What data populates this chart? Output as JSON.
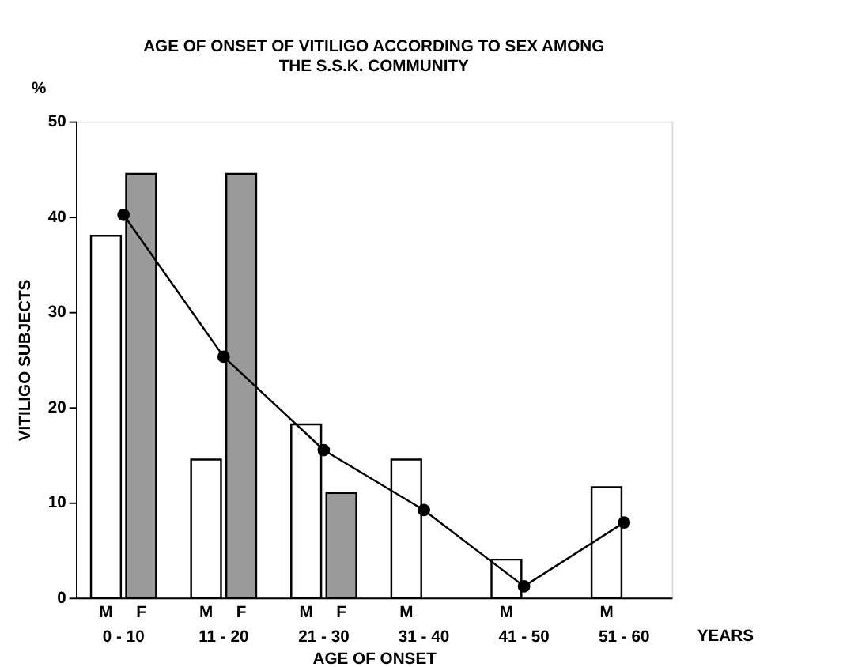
{
  "chart_data": {
    "type": "bar",
    "title": "AGE OF ONSET OF VITILIGO ACCORDING TO SEX AMONG\nTHE S.S.K. COMMUNITY",
    "xlabel": "AGE OF ONSET",
    "ylabel": "VITILIGO SUBJECTS",
    "categories": [
      "0 - 10",
      "11 - 20",
      "21 - 30",
      "31 - 40",
      "41 - 50",
      "51 - 60"
    ],
    "series": [
      {
        "name": "M",
        "color": "#ffffff",
        "values": [
          38,
          14.5,
          18.2,
          14.5,
          4,
          11.6
        ]
      },
      {
        "name": "F",
        "color": "#9a9a9a",
        "values": [
          44.5,
          44.5,
          11,
          null,
          null,
          null
        ]
      },
      {
        "type": "line",
        "color": "#000000",
        "marker": "circle",
        "values": [
          40.2,
          25.3,
          15.5,
          9.2,
          1.2,
          7.9
        ]
      }
    ],
    "ylim": [
      0,
      50
    ],
    "yticks": [
      0,
      10,
      20,
      30,
      40,
      50
    ],
    "grid": false,
    "legend": false,
    "annotations": [
      "%",
      "YEARS"
    ]
  }
}
